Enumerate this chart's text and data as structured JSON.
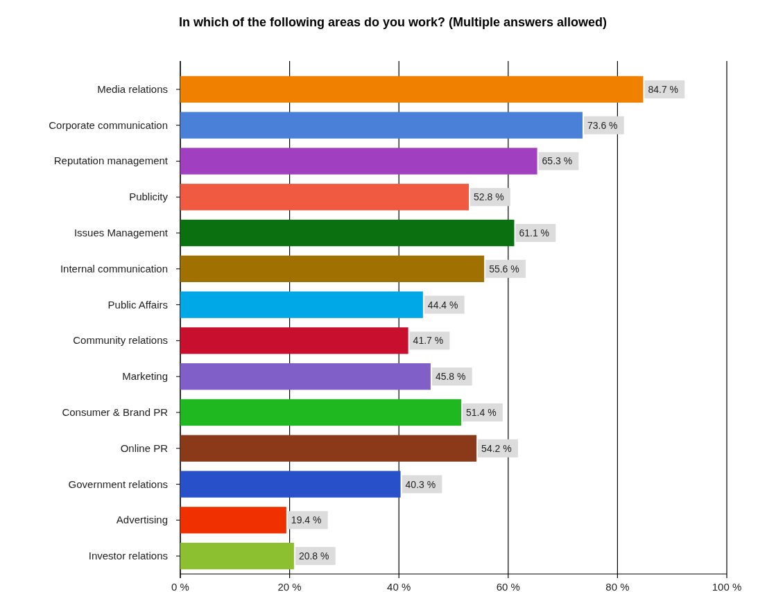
{
  "chart_data": {
    "type": "bar",
    "orientation": "horizontal",
    "title": "In which of the following areas do you work? (Multiple answers allowed)",
    "categories": [
      "Media relations",
      "Corporate communication",
      "Reputation management",
      "Publicity",
      "Issues Management",
      "Internal communication",
      "Public Affairs",
      "Community relations",
      "Marketing",
      "Consumer & Brand PR",
      "Online PR",
      "Government relations",
      "Advertising",
      "Investor relations"
    ],
    "values": [
      84.7,
      73.6,
      65.3,
      52.8,
      61.1,
      55.6,
      44.4,
      41.7,
      45.8,
      51.4,
      54.2,
      40.3,
      19.4,
      20.8
    ],
    "value_labels": [
      "84.7 %",
      "73.6 %",
      "65.3 %",
      "52.8 %",
      "61.1 %",
      "55.6 %",
      "44.4 %",
      "41.7 %",
      "45.8 %",
      "51.4 %",
      "54.2 %",
      "40.3 %",
      "19.4 %",
      "20.8 %"
    ],
    "colors": [
      "#f08000",
      "#4a80d8",
      "#a040c0",
      "#f05a40",
      "#0a7010",
      "#a07000",
      "#00a8e8",
      "#c8102e",
      "#8060c8",
      "#20b820",
      "#8a3a18",
      "#2850c8",
      "#f03000",
      "#8cc030"
    ],
    "xlim": [
      0,
      100
    ],
    "xticks": [
      {
        "value": 0,
        "label": "0 %"
      },
      {
        "value": 20,
        "label": "20 %"
      },
      {
        "value": 40,
        "label": "40 %"
      },
      {
        "value": 60,
        "label": "60 %"
      },
      {
        "value": 80,
        "label": "80 %"
      },
      {
        "value": 100,
        "label": "100 %"
      }
    ],
    "grid": "x"
  }
}
